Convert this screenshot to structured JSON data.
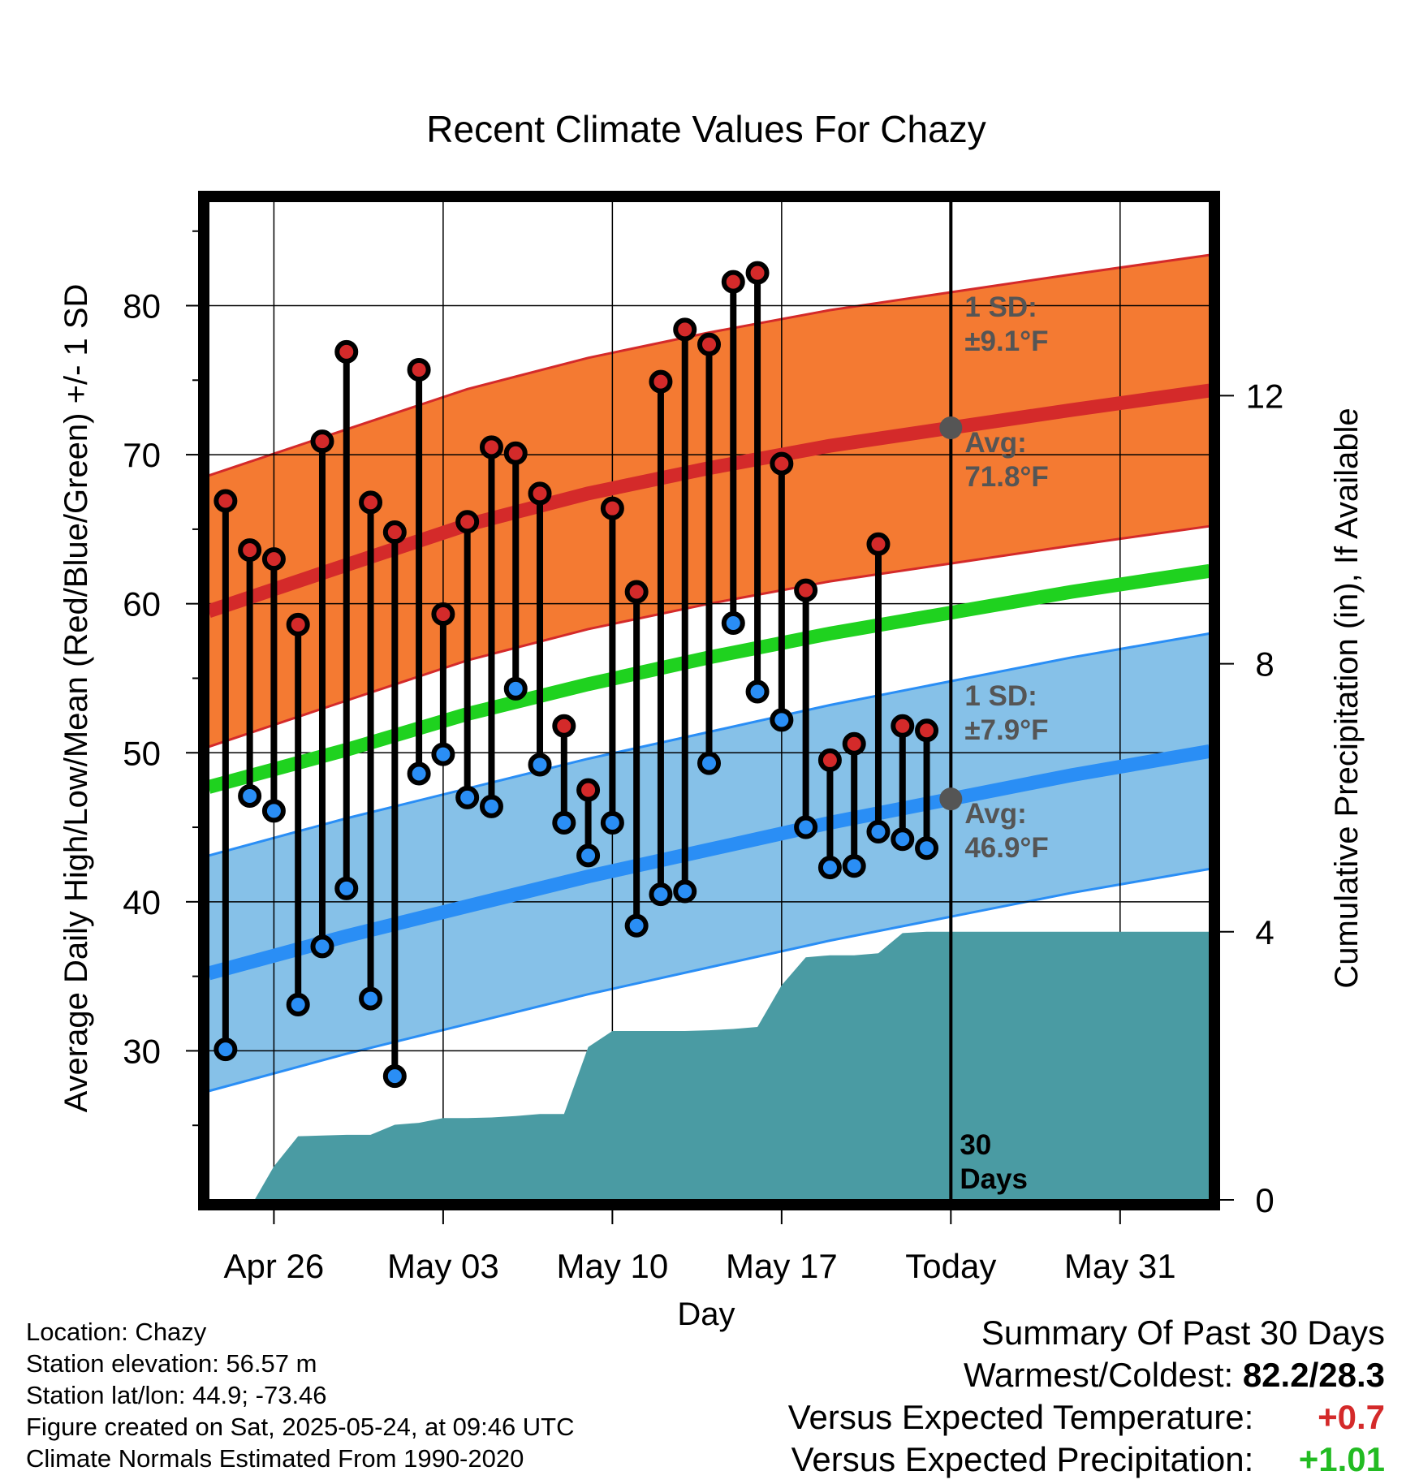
{
  "chart_data": {
    "type": "range-line",
    "title": "Recent Climate Values For Chazy",
    "xlabel": "Day",
    "ylabel_left": "Average Daily High/Low/Mean (Red/Blue/Green) +/- 1 SD",
    "ylabel_right": "Cumulative Precipitation (in), If Available",
    "x_ticks": [
      {
        "day": 2,
        "label": "Apr 26"
      },
      {
        "day": 9,
        "label": "May 03"
      },
      {
        "day": 16,
        "label": "May 10"
      },
      {
        "day": 23,
        "label": "May 17"
      },
      {
        "day": 30,
        "label": "Today"
      },
      {
        "day": 37,
        "label": "May 31"
      }
    ],
    "xlim": [
      -0.7,
      40.7
    ],
    "ylim_left": [
      20,
      87
    ],
    "yticks_left": [
      30,
      40,
      50,
      60,
      70,
      80
    ],
    "ylim_right": [
      0,
      14.9
    ],
    "yticks_right": [
      0,
      4,
      8,
      12
    ],
    "grid": true,
    "daily": [
      {
        "day": 0,
        "high": 66.9,
        "low": 30.1
      },
      {
        "day": 1,
        "high": 63.6,
        "low": 47.1
      },
      {
        "day": 2,
        "high": 63.0,
        "low": 46.1
      },
      {
        "day": 3,
        "high": 58.6,
        "low": 33.1
      },
      {
        "day": 4,
        "high": 70.9,
        "low": 37.0
      },
      {
        "day": 5,
        "high": 76.9,
        "low": 40.9
      },
      {
        "day": 6,
        "high": 66.8,
        "low": 33.5
      },
      {
        "day": 7,
        "high": 64.8,
        "low": 28.3
      },
      {
        "day": 8,
        "high": 75.7,
        "low": 48.6
      },
      {
        "day": 9,
        "high": 59.3,
        "low": 49.9
      },
      {
        "day": 10,
        "high": 65.5,
        "low": 47.0
      },
      {
        "day": 11,
        "high": 70.5,
        "low": 46.4
      },
      {
        "day": 12,
        "high": 70.1,
        "low": 54.3
      },
      {
        "day": 13,
        "high": 67.4,
        "low": 49.2
      },
      {
        "day": 14,
        "high": 51.8,
        "low": 45.3
      },
      {
        "day": 15,
        "high": 47.5,
        "low": 43.1
      },
      {
        "day": 16,
        "high": 66.4,
        "low": 45.3
      },
      {
        "day": 17,
        "high": 60.8,
        "low": 38.4
      },
      {
        "day": 18,
        "high": 74.9,
        "low": 40.5
      },
      {
        "day": 19,
        "high": 78.4,
        "low": 40.7
      },
      {
        "day": 20,
        "high": 77.4,
        "low": 49.3
      },
      {
        "day": 21,
        "high": 81.6,
        "low": 58.7
      },
      {
        "day": 22,
        "high": 82.2,
        "low": 54.1
      },
      {
        "day": 23,
        "high": 69.4,
        "low": 52.2
      },
      {
        "day": 24,
        "high": 60.9,
        "low": 45.0
      },
      {
        "day": 25,
        "high": 49.5,
        "low": 42.3
      },
      {
        "day": 26,
        "high": 50.6,
        "low": 42.4
      },
      {
        "day": 27,
        "high": 64.0,
        "low": 44.7
      },
      {
        "day": 28,
        "high": 51.8,
        "low": 44.2
      },
      {
        "day": 29,
        "high": 51.5,
        "low": 43.6
      }
    ],
    "normal_high": {
      "x": [
        -0.7,
        5,
        10,
        15,
        20,
        25,
        30,
        35,
        40.7
      ],
      "values": [
        59.5,
        62.6,
        65.3,
        67.4,
        69.1,
        70.6,
        71.8,
        73.0,
        74.3
      ]
    },
    "normal_high_sd": 9.1,
    "normal_low": {
      "x": [
        -0.7,
        5,
        10,
        15,
        20,
        25,
        30,
        35,
        40.7
      ],
      "values": [
        35.2,
        37.7,
        39.7,
        41.7,
        43.5,
        45.3,
        46.9,
        48.5,
        50.1
      ]
    },
    "normal_low_sd": 7.9,
    "normal_mean": {
      "x": [
        -0.7,
        5,
        10,
        15,
        20,
        25,
        30,
        35,
        40.7
      ],
      "values": [
        47.7,
        50.2,
        52.6,
        54.6,
        56.4,
        58.0,
        59.4,
        60.8,
        62.2
      ]
    },
    "precip_cumulative": {
      "x": [
        -0.7,
        1.2,
        2.0,
        3.0,
        4.0,
        5.0,
        6.0,
        7.0,
        8.0,
        9.0,
        10.0,
        11.0,
        12.0,
        13.0,
        14.0,
        15.0,
        16.0,
        17.0,
        18.0,
        19.0,
        20.0,
        21.0,
        22.0,
        23.0,
        24.0,
        25.0,
        26.0,
        27.0,
        28.0,
        29.0,
        30.0,
        40.7
      ],
      "values": [
        0,
        0,
        0.5,
        0.95,
        0.96,
        0.97,
        0.97,
        1.12,
        1.15,
        1.22,
        1.22,
        1.23,
        1.25,
        1.28,
        1.28,
        2.28,
        2.52,
        2.52,
        2.52,
        2.52,
        2.53,
        2.55,
        2.58,
        3.2,
        3.62,
        3.65,
        3.65,
        3.68,
        3.98,
        4.0,
        4.0,
        4.0
      ]
    },
    "annotations": {
      "high_sd": "1 SD:\n±9.1°F",
      "high_avg": "Avg:\n71.8°F",
      "low_sd": "1 SD:\n±7.9°F",
      "low_avg": "Avg:\n46.9°F",
      "period": "30\nDays",
      "today_day": 30
    },
    "colors": {
      "high_band": "#f47a32",
      "high_line": "#d42a2a",
      "low_band": "#86c1e8",
      "low_line": "#2a8ef5",
      "mean_line": "#1fd21f",
      "precip": "#4a9ba3",
      "high_dot": "#d42a2a",
      "low_dot": "#2a8ef5",
      "annotation": "#555555"
    }
  },
  "footer": {
    "location": "Location: Chazy",
    "elevation": "Station elevation: 56.57 m",
    "latlon": "Station lat/lon: 44.9; -73.46",
    "created": "Figure created on Sat, 2025-05-24, at 09:46 UTC",
    "normals": "Climate Normals Estimated From 1990-2020"
  },
  "summary": {
    "title": "Summary Of Past 30 Days",
    "warm_cold_label": "Warmest/Coldest:",
    "warm_cold_value": "82.2/28.3",
    "temp_label": "Versus Expected Temperature:",
    "temp_value": "+0.7",
    "temp_color": "#d42a2a",
    "precip_label": "Versus Expected Precipitation:",
    "precip_value": "+1.01",
    "precip_color": "#22bb22"
  }
}
